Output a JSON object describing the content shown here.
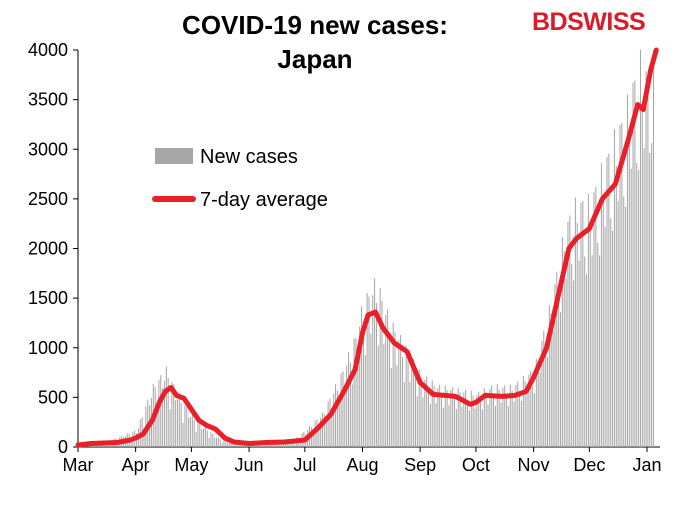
{
  "header": {
    "title_line_1": "COVID-19 new cases:",
    "title_line_2": "Japan",
    "logo_text": "BDSWISS"
  },
  "colors": {
    "bars": "#a6a6a6",
    "average_line": "#e8202a",
    "logo": "#d91c2a"
  },
  "chart_data": {
    "type": "bar",
    "title": "COVID-19 new cases: Japan",
    "ylim": [
      0,
      4000
    ],
    "yticks": [
      "0",
      "500",
      "1000",
      "1500",
      "2000",
      "2500",
      "3000",
      "3500",
      "4000"
    ],
    "xticks": [
      "Mar",
      "Apr",
      "May",
      "Jun",
      "Jul",
      "Aug",
      "Sep",
      "Oct",
      "Nov",
      "Dec",
      "Jan"
    ],
    "legend_position": "upper-left, inside plot",
    "series": [
      {
        "name": "New cases",
        "kind": "bar",
        "month_points": [
          [
            "Mar",
            20
          ],
          [
            "Mar 15",
            40
          ],
          [
            "Apr",
            150
          ],
          [
            "Apr 10",
            550
          ],
          [
            "Apr 17",
            700
          ],
          [
            "Apr 24",
            450
          ],
          [
            "May",
            280
          ],
          [
            "May 8",
            170
          ],
          [
            "May 15",
            80
          ],
          [
            "May 22",
            40
          ],
          [
            "Jun",
            40
          ],
          [
            "Jun 15",
            50
          ],
          [
            "Jun 25",
            70
          ],
          [
            "Jul",
            150
          ],
          [
            "Jul 10",
            300
          ],
          [
            "Jul 20",
            650
          ],
          [
            "Jul 28",
            1000
          ],
          [
            "Aug",
            1300
          ],
          [
            "Aug 8",
            1500
          ],
          [
            "Aug 15",
            1150
          ],
          [
            "Aug 22",
            950
          ],
          [
            "Sep",
            650
          ],
          [
            "Sep 10",
            550
          ],
          [
            "Sep 20",
            520
          ],
          [
            "Oct",
            480
          ],
          [
            "Oct 10",
            550
          ],
          [
            "Oct 20",
            540
          ],
          [
            "Nov",
            700
          ],
          [
            "Nov 10",
            1300
          ],
          [
            "Nov 18",
            2000
          ],
          [
            "Nov 24",
            2200
          ],
          [
            "Dec",
            2200
          ],
          [
            "Dec 10",
            2600
          ],
          [
            "Dec 20",
            3000
          ],
          [
            "Dec 28",
            3500
          ],
          [
            "Jan",
            3300
          ],
          [
            "Jan 5",
            4200
          ]
        ]
      },
      {
        "name": "7-day average",
        "kind": "line",
        "points": [
          [
            "Mar",
            20
          ],
          [
            "Mar 8",
            35
          ],
          [
            "Mar 15",
            40
          ],
          [
            "Mar 22",
            45
          ],
          [
            "Mar 29",
            70
          ],
          [
            "Apr",
            90
          ],
          [
            "Apr 5",
            130
          ],
          [
            "Apr 10",
            270
          ],
          [
            "Apr 14",
            460
          ],
          [
            "Apr 17",
            560
          ],
          [
            "Apr 20",
            600
          ],
          [
            "Apr 23",
            520
          ],
          [
            "Apr 27",
            490
          ],
          [
            "May",
            380
          ],
          [
            "May 5",
            270
          ],
          [
            "May 9",
            220
          ],
          [
            "May 14",
            180
          ],
          [
            "May 19",
            90
          ],
          [
            "May 24",
            50
          ],
          [
            "Jun",
            35
          ],
          [
            "Jun 10",
            45
          ],
          [
            "Jun 20",
            50
          ],
          [
            "Jul",
            70
          ],
          [
            "Jul 8",
            190
          ],
          [
            "Jul 15",
            330
          ],
          [
            "Jul 22",
            560
          ],
          [
            "Jul 28",
            780
          ],
          [
            "Aug",
            1150
          ],
          [
            "Aug 4",
            1330
          ],
          [
            "Aug 8",
            1360
          ],
          [
            "Aug 12",
            1200
          ],
          [
            "Aug 18",
            1050
          ],
          [
            "Aug 25",
            960
          ],
          [
            "Sep",
            650
          ],
          [
            "Sep 8",
            530
          ],
          [
            "Sep 20",
            510
          ],
          [
            "Sep 28",
            430
          ],
          [
            "Oct",
            450
          ],
          [
            "Oct 6",
            520
          ],
          [
            "Oct 15",
            510
          ],
          [
            "Oct 22",
            520
          ],
          [
            "Oct 28",
            560
          ],
          [
            "Nov",
            700
          ],
          [
            "Nov 8",
            1000
          ],
          [
            "Nov 14",
            1500
          ],
          [
            "Nov 20",
            2000
          ],
          [
            "Nov 24",
            2100
          ],
          [
            "Dec",
            2200
          ],
          [
            "Dec 8",
            2500
          ],
          [
            "Dec 15",
            2650
          ],
          [
            "Dec 22",
            3100
          ],
          [
            "Dec 27",
            3450
          ],
          [
            "Dec 30",
            3400
          ],
          [
            "Jan 3",
            3800
          ],
          [
            "Jan 6",
            4000
          ]
        ]
      }
    ]
  }
}
